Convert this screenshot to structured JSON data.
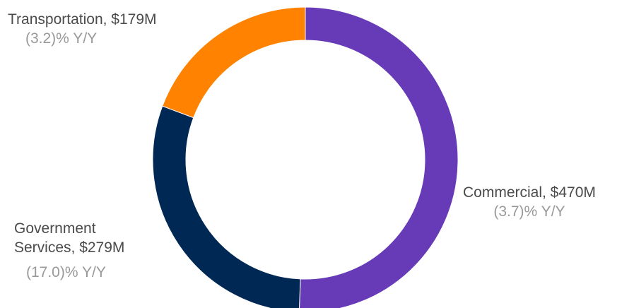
{
  "chart_data": {
    "type": "pie",
    "donut": true,
    "slices": [
      {
        "label": "Commercial",
        "value_text": "$470M",
        "value": 470,
        "yy": "(3.7)% Y/Y",
        "color": "#673ab7"
      },
      {
        "label": "Government Services",
        "label_line1": "Government",
        "label_line2": "Services, $279M",
        "value_text": "$279M",
        "value": 279,
        "yy": "(17.0)% Y/Y",
        "color": "#002855"
      },
      {
        "label": "Transportation",
        "value_text": "$179M",
        "value": 179,
        "yy": "(3.2)% Y/Y",
        "color": "#ff8200"
      }
    ],
    "label_text": {
      "commercial": "Commercial, $470M",
      "transportation": "Transportation, $179M"
    }
  }
}
